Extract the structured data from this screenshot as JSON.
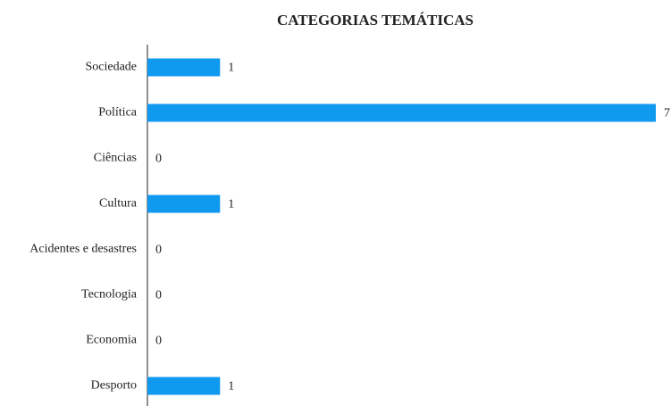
{
  "chart_data": {
    "type": "barh",
    "title": "CATEGORIAS TEMÁTICAS",
    "categories": [
      "Sociedade",
      "Política",
      "Ciências",
      "Cultura",
      "Acidentes e desastres",
      "Tecnologia",
      "Economia",
      "Desporto"
    ],
    "values": [
      1,
      7,
      0,
      1,
      0,
      0,
      0,
      1
    ],
    "color": "#0f9af0",
    "xlim": [
      0,
      7
    ]
  }
}
